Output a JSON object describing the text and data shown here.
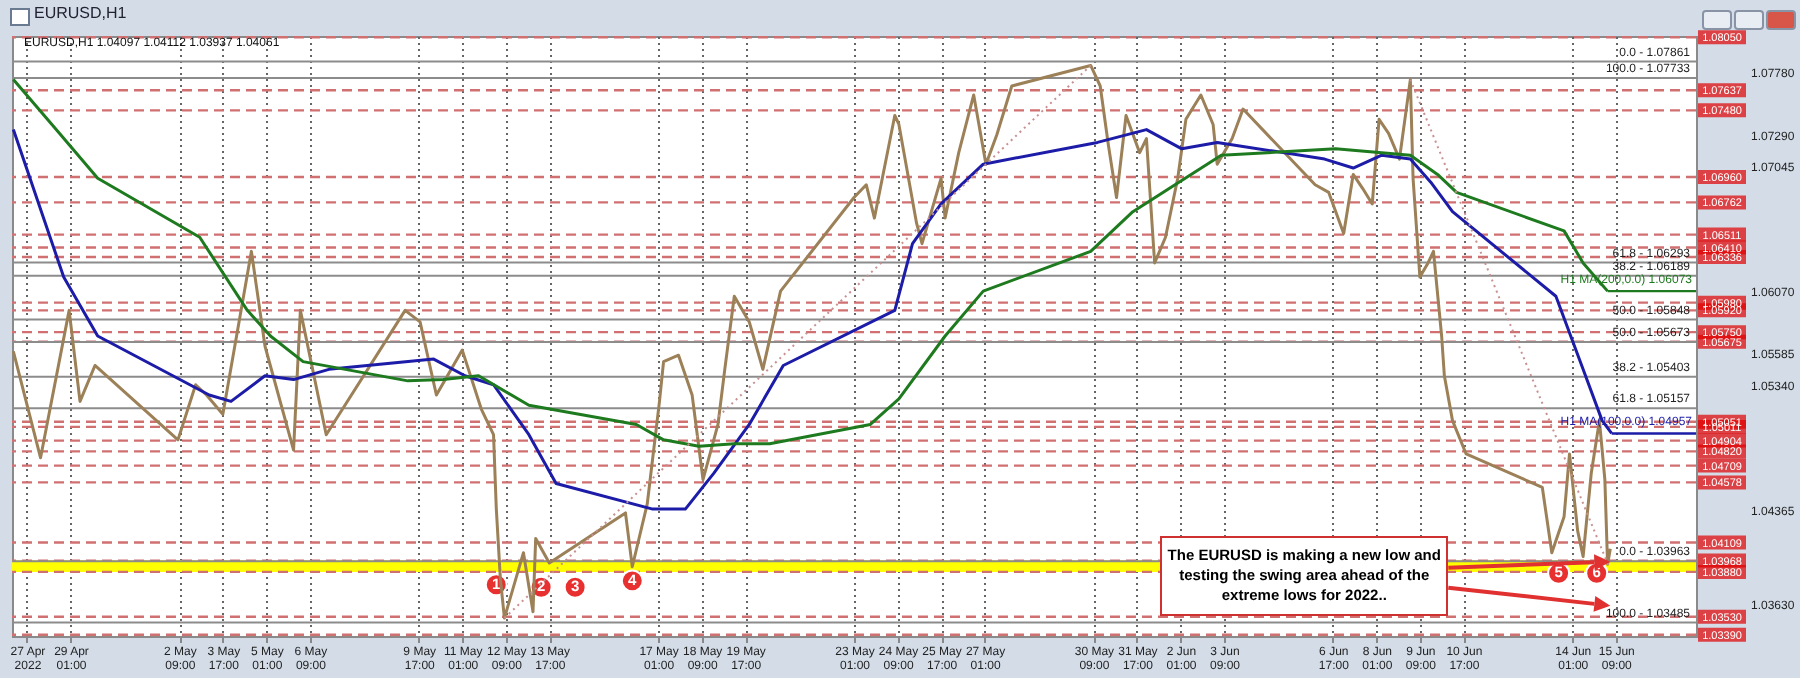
{
  "chart_data": {
    "type": "line",
    "title": "EURUSD,H1",
    "subtitle": "EURUSD,H1  1.04097 1.04112 1.03937 1.04061",
    "xlim": [
      "2022-04-27T06:00",
      "2022-06-17T20:00"
    ],
    "ylim": [
      1.0338,
      1.0806
    ],
    "xticks": [
      {
        "value": "2022-04-27T17:00",
        "label": "27 Apr 2022"
      },
      {
        "value": "2022-04-29T01:00",
        "label": "29 Apr 01:00"
      },
      {
        "value": "2022-05-02T09:00",
        "label": "2 May 09:00"
      },
      {
        "value": "2022-05-03T17:00",
        "label": "3 May 17:00"
      },
      {
        "value": "2022-05-05T01:00",
        "label": "5 May 01:00"
      },
      {
        "value": "2022-05-06T09:00",
        "label": "6 May 09:00"
      },
      {
        "value": "2022-05-09T17:00",
        "label": "9 May 17:00"
      },
      {
        "value": "2022-05-11T01:00",
        "label": "11 May 01:00"
      },
      {
        "value": "2022-05-12T09:00",
        "label": "12 May 09:00"
      },
      {
        "value": "2022-05-13T17:00",
        "label": "13 May 17:00"
      },
      {
        "value": "2022-05-17T01:00",
        "label": "17 May 01:00"
      },
      {
        "value": "2022-05-18T09:00",
        "label": "18 May 09:00"
      },
      {
        "value": "2022-05-19T17:00",
        "label": "19 May 17:00"
      },
      {
        "value": "2022-05-23T01:00",
        "label": "23 May 01:00"
      },
      {
        "value": "2022-05-24T09:00",
        "label": "24 May 09:00"
      },
      {
        "value": "2022-05-25T17:00",
        "label": "25 May 17:00"
      },
      {
        "value": "2022-05-27T01:00",
        "label": "27 May 01:00"
      },
      {
        "value": "2022-05-30T09:00",
        "label": "30 May 09:00"
      },
      {
        "value": "2022-05-31T17:00",
        "label": "31 May 17:00"
      },
      {
        "value": "2022-06-02T01:00",
        "label": "2 Jun 01:00"
      },
      {
        "value": "2022-06-03T09:00",
        "label": "3 Jun 09:00"
      },
      {
        "value": "2022-06-06T17:00",
        "label": "6 Jun 17:00"
      },
      {
        "value": "2022-06-08T01:00",
        "label": "8 Jun 01:00"
      },
      {
        "value": "2022-06-09T09:00",
        "label": "9 Jun 09:00"
      },
      {
        "value": "2022-06-10T17:00",
        "label": "10 Jun 17:00"
      },
      {
        "value": "2022-06-14T01:00",
        "label": "14 Jun 01:00"
      },
      {
        "value": "2022-06-15T09:00",
        "label": "15 Jun 09:00"
      }
    ],
    "yticks": [
      {
        "value": 1.0778,
        "label": "1.07780"
      },
      {
        "value": 1.0729,
        "label": "1.07290"
      },
      {
        "value": 1.07045,
        "label": "1.07045"
      },
      {
        "value": 1.0607,
        "label": "1.06070"
      },
      {
        "value": 1.05585,
        "label": "1.05585"
      },
      {
        "value": 1.0534,
        "label": "1.05340"
      },
      {
        "value": 1.04365,
        "label": "1.04365"
      },
      {
        "value": 1.0363,
        "label": "1.03630"
      }
    ],
    "grid": "x",
    "series": [
      {
        "color": "#9c8058",
        "x": [
          "2022-04-27T07:00",
          "2022-04-28T03:00",
          "2022-04-29T00:00",
          "2022-04-29T08:00",
          "2022-04-29T19:00",
          "2022-05-02T08:00",
          "2022-05-02T21:00",
          "2022-05-03T05:00",
          "2022-05-03T17:00",
          "2022-05-04T14:00",
          "2022-05-05T00:00",
          "2022-05-05T21:00",
          "2022-05-06T02:00",
          "2022-05-06T21:00",
          "2022-05-09T07:00",
          "2022-05-09T18:00",
          "2022-05-10T06:00",
          "2022-05-11T01:00",
          "2022-05-11T15:00",
          "2022-05-12T00:00",
          "2022-05-12T02:00",
          "2022-05-12T05:00",
          "2022-05-12T08:00",
          "2022-05-12T22:00",
          "2022-05-13T05:00",
          "2022-05-13T07:00",
          "2022-05-13T17:00",
          "2022-05-16T01:00",
          "2022-05-16T06:00",
          "2022-05-16T17:00",
          "2022-05-17T02:00",
          "2022-05-17T05:00",
          "2022-05-17T16:00",
          "2022-05-18T02:00",
          "2022-05-18T10:00",
          "2022-05-18T21:00",
          "2022-05-19T02:00",
          "2022-05-19T09:00",
          "2022-05-19T20:00",
          "2022-05-20T06:00",
          "2022-05-20T19:00",
          "2022-05-23T01:00",
          "2022-05-23T10:00",
          "2022-05-23T16:00",
          "2022-05-24T07:00",
          "2022-05-24T10:00",
          "2022-05-24T23:00",
          "2022-05-25T03:00",
          "2022-05-25T17:00",
          "2022-05-25T20:00",
          "2022-05-26T06:00",
          "2022-05-26T17:00",
          "2022-05-27T02:00",
          "2022-05-27T10:00",
          "2022-05-27T21:00",
          "2022-05-30T07:00",
          "2022-05-30T14:00",
          "2022-05-30T20:00",
          "2022-05-31T02:00",
          "2022-05-31T09:00",
          "2022-05-31T19:00",
          "2022-06-01T00:00",
          "2022-06-01T06:00",
          "2022-06-01T14:00",
          "2022-06-01T23:00",
          "2022-06-02T05:00",
          "2022-06-02T16:00",
          "2022-06-03T01:00",
          "2022-06-03T04:00",
          "2022-06-03T15:00",
          "2022-06-03T23:00",
          "2022-06-06T04:00",
          "2022-06-06T14:00",
          "2022-06-07T01:00",
          "2022-06-07T08:00",
          "2022-06-07T15:00",
          "2022-06-07T22:00",
          "2022-06-08T03:00",
          "2022-06-08T10:00",
          "2022-06-08T18:00",
          "2022-06-09T02:00",
          "2022-06-09T04:00",
          "2022-06-09T09:00",
          "2022-06-09T15:00",
          "2022-06-09T19:00",
          "2022-06-10T01:00",
          "2022-06-10T03:00",
          "2022-06-10T09:00",
          "2022-06-10T19:00",
          "2022-06-13T03:00",
          "2022-06-13T10:00",
          "2022-06-13T19:00",
          "2022-06-13T23:00",
          "2022-06-14T05:00",
          "2022-06-14T09:00",
          "2022-06-14T15:00",
          "2022-06-14T21:00",
          "2022-06-15T01:00",
          "2022-06-15T03:00",
          "2022-06-15T05:00"
        ],
        "values": [
          1.056,
          1.0477,
          1.0592,
          1.0521,
          1.0549,
          1.0491,
          1.0534,
          1.0526,
          1.0511,
          1.0638,
          1.0564,
          1.0483,
          1.0592,
          1.0495,
          1.0592,
          1.0583,
          1.0526,
          1.0561,
          1.0515,
          1.0495,
          1.0438,
          1.0383,
          1.0352,
          1.0403,
          1.0357,
          1.0414,
          1.0395,
          1.0434,
          1.0392,
          1.0441,
          1.0521,
          1.0552,
          1.0557,
          1.0526,
          1.046,
          1.0503,
          1.0546,
          1.0603,
          1.0583,
          1.0546,
          1.0607,
          1.068,
          1.069,
          1.0664,
          1.0744,
          1.0737,
          1.066,
          1.0644,
          1.0695,
          1.0664,
          1.0715,
          1.076,
          1.0706,
          1.0729,
          1.0767,
          1.0783,
          1.0767,
          1.0721,
          1.068,
          1.0744,
          1.0715,
          1.0726,
          1.0629,
          1.0649,
          1.0695,
          1.0741,
          1.076,
          1.0737,
          1.0706,
          1.0726,
          1.0749,
          1.069,
          1.0684,
          1.0652,
          1.0698,
          1.0687,
          1.0675,
          1.0741,
          1.073,
          1.071,
          1.0772,
          1.0695,
          1.0618,
          1.0629,
          1.0638,
          1.0572,
          1.0541,
          1.0506,
          1.048,
          1.0454,
          1.0403,
          1.0431,
          1.048,
          1.042,
          1.04,
          1.0465,
          1.0506,
          1.046,
          1.0394,
          1.0406
        ]
      },
      {
        "name": "H1 MA(100,0.0) 1.04957",
        "color": "#1c1ca8",
        "x": [
          "2022-04-27T07:00",
          "2022-04-28T20:00",
          "2022-04-29T21:00",
          "2022-05-03T07:00",
          "2022-05-03T23:00",
          "2022-05-05T00:00",
          "2022-05-05T21:00",
          "2022-05-06T23:00",
          "2022-05-10T04:00",
          "2022-05-11T03:00",
          "2022-05-12T00:00",
          "2022-05-13T02:00",
          "2022-05-13T22:00",
          "2022-05-16T21:00",
          "2022-05-17T21:00",
          "2022-05-18T18:00",
          "2022-05-19T20:00",
          "2022-05-20T21:00",
          "2022-05-24T07:00",
          "2022-05-24T20:00",
          "2022-05-25T17:00",
          "2022-05-27T00:00",
          "2022-05-30T12:00",
          "2022-06-01T00:00",
          "2022-06-02T02:00",
          "2022-06-03T04:00",
          "2022-06-06T11:00",
          "2022-06-07T08:00",
          "2022-06-08T05:00",
          "2022-06-09T02:00",
          "2022-06-09T17:00",
          "2022-06-10T09:00",
          "2022-06-13T13:00",
          "2022-06-14T09:00",
          "2022-06-14T23:00",
          "2022-06-15T06:00"
        ],
        "values": [
          1.0733,
          1.0618,
          1.0572,
          1.0526,
          1.0521,
          1.0541,
          1.0538,
          1.0546,
          1.0554,
          1.0541,
          1.0534,
          1.0495,
          1.0457,
          1.0437,
          1.0437,
          1.0465,
          1.0503,
          1.0549,
          1.0592,
          1.0644,
          1.0675,
          1.0706,
          1.0723,
          1.0733,
          1.0718,
          1.0723,
          1.071,
          1.0703,
          1.0713,
          1.071,
          1.0692,
          1.0669,
          1.0603,
          1.0546,
          1.0506,
          1.0496
        ]
      },
      {
        "name": "H1 MA(200,0.0) 1.06073",
        "color": "#1e7a1e",
        "x": [
          "2022-04-27T07:00",
          "2022-04-28T17:00",
          "2022-04-29T21:00",
          "2022-05-03T00:00",
          "2022-05-04T11:00",
          "2022-05-05T04:00",
          "2022-05-06T04:00",
          "2022-05-09T09:00",
          "2022-05-10T11:00",
          "2022-05-11T13:00",
          "2022-05-13T02:00",
          "2022-05-16T09:00",
          "2022-05-17T05:00",
          "2022-05-18T07:00",
          "2022-05-19T09:00",
          "2022-05-20T11:00",
          "2022-05-23T13:00",
          "2022-05-24T10:00",
          "2022-05-25T20:00",
          "2022-05-27T00:00",
          "2022-05-30T07:00",
          "2022-05-31T14:00",
          "2022-06-01T21:00",
          "2022-06-03T07:00",
          "2022-06-06T19:00",
          "2022-06-08T05:00",
          "2022-06-09T02:00",
          "2022-06-09T22:00",
          "2022-06-10T12:00",
          "2022-06-13T19:00",
          "2022-06-14T09:00",
          "2022-06-15T03:00"
        ],
        "values": [
          1.0772,
          1.073,
          1.0695,
          1.0649,
          1.0592,
          1.0572,
          1.0552,
          1.0537,
          1.0538,
          1.0541,
          1.0518,
          1.0503,
          1.0491,
          1.0486,
          1.0488,
          1.0488,
          1.0503,
          1.0523,
          1.0572,
          1.0607,
          1.0638,
          1.0669,
          1.069,
          1.0713,
          1.0718,
          1.0715,
          1.0713,
          1.0698,
          1.0684,
          1.0654,
          1.0629,
          1.0607
        ]
      },
      {
        "color": "#c89090",
        "line_style": "dotted",
        "x": [
          "2022-05-12T08:00",
          "2022-05-30T07:00"
        ],
        "values": [
          1.0352,
          1.0783
        ]
      },
      {
        "color": "#c89090",
        "line_style": "dotted",
        "x": [
          "2022-06-09T02:00",
          "2022-06-15T04:00"
        ],
        "values": [
          1.0772,
          1.0392
        ]
      }
    ],
    "bands": [
      {
        "axis": "y",
        "from": 1.0388,
        "to": 1.0397,
        "color": "#ffff00"
      }
    ],
    "ref_lines": [
      {
        "axis": "y",
        "value": 1.0805,
        "label": "1.08050",
        "color": "#d07070",
        "line_style": "dashed"
      },
      {
        "axis": "y",
        "value": 1.07637,
        "label": "1.07637",
        "color": "#d07070",
        "line_style": "dashed"
      },
      {
        "axis": "y",
        "value": 1.0748,
        "label": "1.07480",
        "color": "#d07070",
        "line_style": "dashed"
      },
      {
        "axis": "y",
        "value": 1.0696,
        "label": "1.06960",
        "color": "#d07070",
        "line_style": "dashed"
      },
      {
        "axis": "y",
        "value": 1.06762,
        "label": "1.06762",
        "color": "#d07070",
        "line_style": "dashed"
      },
      {
        "axis": "y",
        "value": 1.06511,
        "label": "1.06511",
        "color": "#d07070",
        "line_style": "dashed"
      },
      {
        "axis": "y",
        "value": 1.0641,
        "label": "1.06410",
        "color": "#d07070",
        "line_style": "dashed"
      },
      {
        "axis": "y",
        "value": 1.06336,
        "label": "1.06336",
        "color": "#d07070",
        "line_style": "dashed"
      },
      {
        "axis": "y",
        "value": 1.0598,
        "label": "1.05980",
        "color": "#d07070",
        "line_style": "dashed"
      },
      {
        "axis": "y",
        "value": 1.0592,
        "label": "1.05920",
        "color": "#d07070",
        "line_style": "dashed"
      },
      {
        "axis": "y",
        "value": 1.0575,
        "label": "1.05750",
        "color": "#d07070",
        "line_style": "dashed"
      },
      {
        "axis": "y",
        "value": 1.05675,
        "label": "1.05675",
        "color": "#d07070",
        "line_style": "dashed"
      },
      {
        "axis": "y",
        "value": 1.05051,
        "label": "1.05051",
        "color": "#d07070",
        "line_style": "dashed"
      },
      {
        "axis": "y",
        "value": 1.05011,
        "label": "1.05011",
        "color": "#d07070",
        "line_style": "dashed"
      },
      {
        "axis": "y",
        "value": 1.04904,
        "label": "1.04904",
        "color": "#d07070",
        "line_style": "dashed"
      },
      {
        "axis": "y",
        "value": 1.0482,
        "label": "1.04820",
        "color": "#d07070",
        "line_style": "dashed"
      },
      {
        "axis": "y",
        "value": 1.04709,
        "label": "1.04709",
        "color": "#d07070",
        "line_style": "dashed"
      },
      {
        "axis": "y",
        "value": 1.04578,
        "label": "1.04578",
        "color": "#d07070",
        "line_style": "dashed"
      },
      {
        "axis": "y",
        "value": 1.04109,
        "label": "1.04109",
        "color": "#d07070",
        "line_style": "dashed"
      },
      {
        "axis": "y",
        "value": 1.03968,
        "label": "1.03968",
        "color": "#d07070",
        "line_style": "dashed"
      },
      {
        "axis": "y",
        "value": 1.0388,
        "label": "1.03880",
        "color": "#d07070",
        "line_style": "dashed"
      },
      {
        "axis": "y",
        "value": 1.0353,
        "label": "1.03530",
        "color": "#d07070",
        "line_style": "dashed"
      },
      {
        "axis": "y",
        "value": 1.0339,
        "label": "1.03390",
        "color": "#d07070",
        "line_style": "dashed"
      },
      {
        "axis": "y",
        "value": 1.07861,
        "color": "#8c8c8c",
        "line_style": "solid"
      },
      {
        "axis": "y",
        "value": 1.07733,
        "color": "#8c8c8c",
        "line_style": "solid"
      },
      {
        "axis": "y",
        "value": 1.06293,
        "color": "#8c8c8c",
        "line_style": "solid"
      },
      {
        "axis": "y",
        "value": 1.06189,
        "color": "#8c8c8c",
        "line_style": "solid"
      },
      {
        "axis": "y",
        "value": 1.05848,
        "color": "#8c8c8c",
        "line_style": "solid"
      },
      {
        "axis": "y",
        "value": 1.05673,
        "color": "#8c8c8c",
        "line_style": "solid"
      },
      {
        "axis": "y",
        "value": 1.05403,
        "color": "#8c8c8c",
        "line_style": "solid"
      },
      {
        "axis": "y",
        "value": 1.05157,
        "color": "#8c8c8c",
        "line_style": "solid"
      },
      {
        "axis": "y",
        "value": 1.03963,
        "color": "#8c8c8c",
        "line_style": "solid"
      },
      {
        "axis": "y",
        "value": 1.03485,
        "color": "#8c8c8c",
        "line_style": "solid"
      }
    ],
    "annotations": [
      {
        "text": "0.0 - 1.07861",
        "x": "2022-06-17T20:00",
        "y": 1.07861
      },
      {
        "text": "100.0 - 1.07733",
        "x": "2022-06-17T20:00",
        "y": 1.07733
      },
      {
        "text": "61.8 - 1.06293",
        "x": "2022-06-17T20:00",
        "y": 1.06293
      },
      {
        "text": "38.2 - 1.06189",
        "x": "2022-06-17T20:00",
        "y": 1.06189
      },
      {
        "text": "50.0 - 1.05848",
        "x": "2022-06-17T20:00",
        "y": 1.05848
      },
      {
        "text": "50.0 - 1.05673",
        "x": "2022-06-17T20:00",
        "y": 1.05673
      },
      {
        "text": "38.2 - 1.05403",
        "x": "2022-06-17T20:00",
        "y": 1.05403
      },
      {
        "text": "61.8 - 1.05157",
        "x": "2022-06-17T20:00",
        "y": 1.05157
      },
      {
        "text": "0.0 - 1.03963",
        "x": "2022-06-17T20:00",
        "y": 1.03963
      },
      {
        "text": "100.0 - 1.03485",
        "x": "2022-06-17T20:00",
        "y": 1.03485
      },
      {
        "text": "1",
        "x": "2022-05-12T02:00",
        "y": 1.0378
      },
      {
        "text": "2",
        "x": "2022-05-13T11:00",
        "y": 1.0376
      },
      {
        "text": "3",
        "x": "2022-05-14T12:00",
        "y": 1.0376
      },
      {
        "text": "4",
        "x": "2022-05-16T06:00",
        "y": 1.0381
      },
      {
        "text": "5",
        "x": "2022-06-13T15:00",
        "y": 1.0387
      },
      {
        "text": "6",
        "x": "2022-06-14T19:00",
        "y": 1.0387
      },
      {
        "text": "The EURUSD is making a new low and testing the swing area ahead of the extreme lows for 2022..",
        "x": "2022-06-15T05:00",
        "y": 1.0396
      }
    ]
  }
}
